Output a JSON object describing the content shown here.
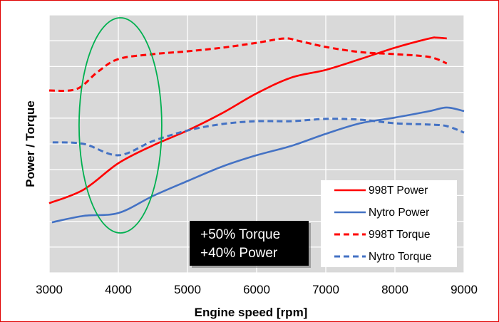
{
  "chart_data": {
    "type": "line",
    "title": "",
    "xlabel": "Engine speed [rpm]",
    "ylabel": "Power / Torque",
    "xlim": [
      3000,
      9000
    ],
    "ylim": [
      0,
      10
    ],
    "xticks": [
      3000,
      4000,
      5000,
      6000,
      7000,
      8000,
      9000
    ],
    "xtick_labels": [
      "3000",
      "4000",
      "5000",
      "6000",
      "7000",
      "8000",
      "9000"
    ],
    "y_gridlines": 10,
    "grid": true,
    "legend_placement": "bottom-right",
    "series": [
      {
        "name": "998T Power",
        "color": "#ff0000",
        "dash": false,
        "x": [
          3000,
          3500,
          4000,
          4500,
          5000,
          5500,
          6000,
          6500,
          7000,
          7500,
          8000,
          8500,
          8600,
          8750
        ],
        "y": [
          2.7,
          3.23,
          4.25,
          4.94,
          5.52,
          6.19,
          6.96,
          7.57,
          7.87,
          8.29,
          8.73,
          9.09,
          9.12,
          9.09
        ]
      },
      {
        "name": "Nytro Power",
        "color": "#4472c4",
        "dash": false,
        "x": [
          3040,
          3500,
          4000,
          4500,
          5000,
          5500,
          6000,
          6500,
          7000,
          7500,
          8000,
          8500,
          8750,
          9000
        ],
        "y": [
          1.96,
          2.21,
          2.32,
          2.98,
          3.56,
          4.12,
          4.56,
          4.92,
          5.39,
          5.8,
          6.02,
          6.27,
          6.41,
          6.27
        ]
      },
      {
        "name": "998T Torque",
        "color": "#ff0000",
        "dash": true,
        "x": [
          3000,
          3400,
          3700,
          4000,
          4500,
          5000,
          5500,
          6000,
          6400,
          6600,
          7000,
          7500,
          8000,
          8500,
          8750
        ],
        "y": [
          7.07,
          7.13,
          7.79,
          8.29,
          8.48,
          8.59,
          8.73,
          8.92,
          9.09,
          9.0,
          8.76,
          8.56,
          8.48,
          8.37,
          8.12
        ]
      },
      {
        "name": "Nytro Torque",
        "color": "#4472c4",
        "dash": true,
        "x": [
          3050,
          3500,
          4000,
          4500,
          5000,
          5500,
          6000,
          6500,
          7000,
          7500,
          8000,
          8500,
          8750,
          9000
        ],
        "y": [
          5.06,
          5.0,
          4.56,
          5.11,
          5.52,
          5.77,
          5.88,
          5.88,
          5.97,
          5.94,
          5.8,
          5.75,
          5.69,
          5.44
        ]
      }
    ],
    "annotations": {
      "box_lines": [
        "+50% Torque",
        "+40% Power"
      ],
      "highlight_ellipse_center_rpm": 4030,
      "highlight_color": "#00b050"
    }
  }
}
